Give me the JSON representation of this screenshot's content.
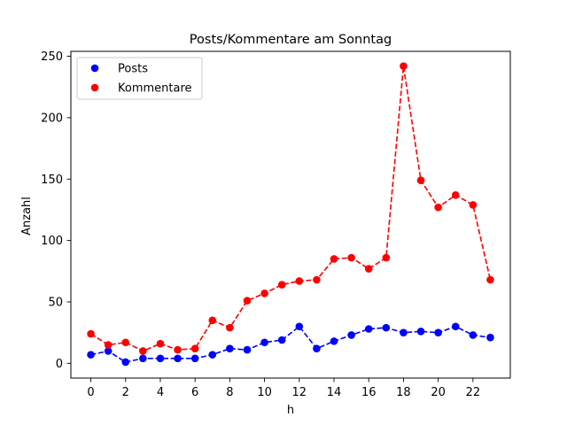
{
  "chart_data": {
    "type": "line",
    "title": "Posts/Kommentare am Sonntag",
    "xlabel": "h",
    "ylabel": "Anzahl",
    "x": [
      0,
      1,
      2,
      3,
      4,
      5,
      6,
      7,
      8,
      9,
      10,
      11,
      12,
      13,
      14,
      15,
      16,
      17,
      18,
      19,
      20,
      21,
      22,
      23
    ],
    "xlim": [
      -1.15,
      24.15
    ],
    "ylim": [
      -12,
      254
    ],
    "xticks": [
      "0",
      "2",
      "4",
      "6",
      "8",
      "10",
      "12",
      "14",
      "16",
      "18",
      "20",
      "22"
    ],
    "yticks": [
      "0",
      "50",
      "100",
      "150",
      "200",
      "250"
    ],
    "grid": false,
    "legend_position": "upper-left",
    "series": [
      {
        "name": "Posts",
        "color": "#0000ff",
        "values": [
          7,
          10,
          1,
          4,
          4,
          4,
          4,
          7,
          12,
          11,
          17,
          19,
          30,
          12,
          18,
          23,
          28,
          29,
          25,
          26,
          25,
          30,
          23,
          21
        ]
      },
      {
        "name": "Kommentare",
        "color": "#ff0000",
        "values": [
          24,
          15,
          17,
          10,
          16,
          11,
          12,
          35,
          29,
          51,
          57,
          64,
          67,
          68,
          85,
          86,
          77,
          86,
          242,
          149,
          127,
          137,
          129,
          68
        ]
      }
    ]
  }
}
